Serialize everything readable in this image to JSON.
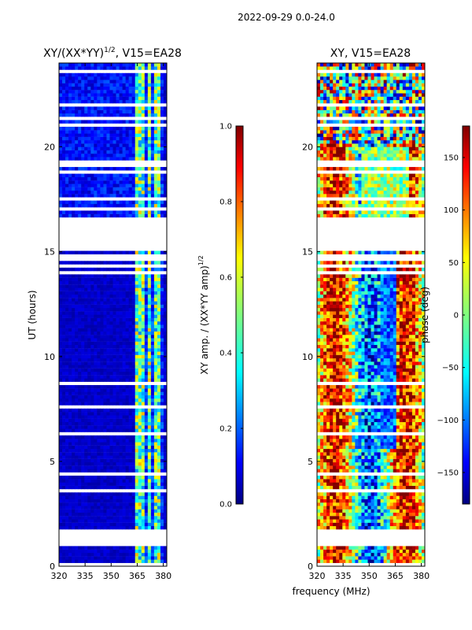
{
  "figure": {
    "suptitle": "2022-09-29 0.0-24.0",
    "xlabel_common": "frequency (MHz)"
  },
  "colors": {
    "jet": [
      "#00007f",
      "#0000ff",
      "#007fff",
      "#00ffff",
      "#7fff7f",
      "#ffff00",
      "#ff7f00",
      "#ff0000",
      "#7f0000"
    ],
    "axes": "#000000",
    "gap": "#ffffff"
  },
  "chart_data": [
    {
      "type": "heatmap",
      "title_base": "XY/(XX*YY)",
      "title_sup": "1/2",
      "title_tail": ", V15=EA28",
      "xlabel": "",
      "ylabel": "UT (hours)",
      "x_range": [
        320,
        382
      ],
      "y_range": [
        0,
        24
      ],
      "xticks": [
        320,
        335,
        350,
        365,
        380
      ],
      "yticks": [
        0,
        5,
        10,
        15,
        20
      ],
      "colorbar": {
        "label_base": "XY amp. / (XX*YY amp)",
        "label_sup": "1/2",
        "range": [
          0.0,
          1.0
        ],
        "ticks": [
          "0.0",
          "0.2",
          "0.4",
          "0.6",
          "0.8",
          "1.0"
        ]
      },
      "description": "Mostly low normalized amplitude (dark blue); brighter bands near 364-380 MHz",
      "bright_channels_mhz": [
        364,
        367,
        372,
        377
      ],
      "no_data_hours": [
        [
          1.75,
          0.9
        ],
        [
          16.6,
          15.0
        ]
      ]
    },
    {
      "type": "heatmap",
      "title": "XY, V15=EA28",
      "xlabel": "",
      "ylabel": "",
      "x_range": [
        320,
        382
      ],
      "y_range": [
        0,
        24
      ],
      "xticks": [
        320,
        335,
        350,
        365,
        380
      ],
      "yticks": [
        0,
        5,
        10,
        15,
        20
      ],
      "colorbar": {
        "label": "phase (deg)",
        "range": [
          -180,
          180
        ],
        "ticks": [
          "150",
          "100",
          "50",
          "0",
          "−50",
          "−100",
          "−150"
        ],
        "tick_values": [
          150,
          100,
          50,
          0,
          -50,
          -100,
          -150
        ]
      },
      "description": "Phase wraps across full range; alternating red/yellow/blue vertical bands",
      "no_data_hours": [
        [
          1.75,
          0.9
        ],
        [
          16.6,
          15.0
        ]
      ]
    }
  ]
}
